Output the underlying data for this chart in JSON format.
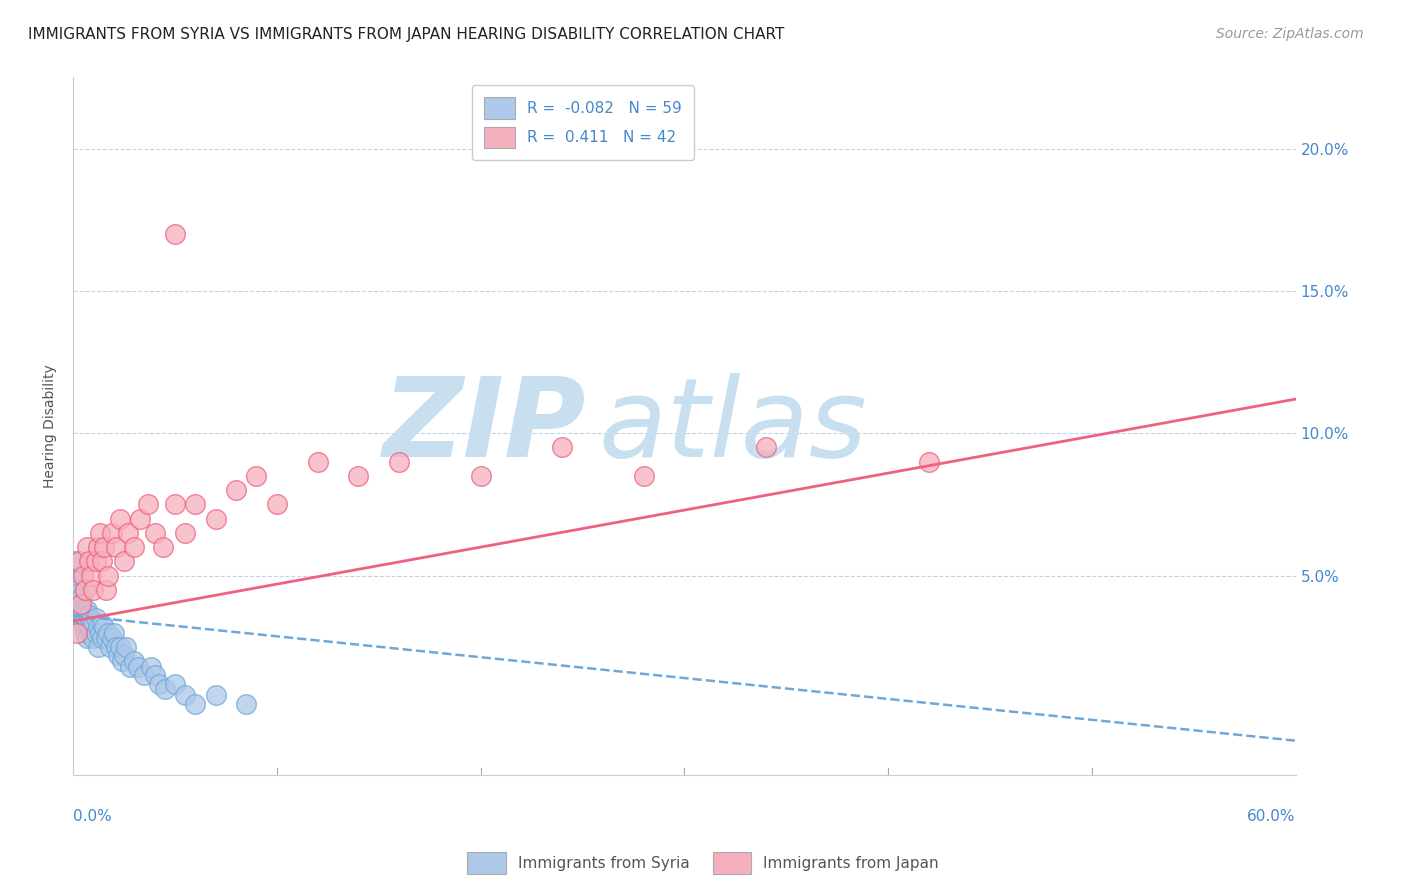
{
  "title": "IMMIGRANTS FROM SYRIA VS IMMIGRANTS FROM JAPAN HEARING DISABILITY CORRELATION CHART",
  "source": "Source: ZipAtlas.com",
  "ylabel": "Hearing Disability",
  "yticks": [
    0.0,
    0.05,
    0.1,
    0.15,
    0.2
  ],
  "ytick_labels": [
    "",
    "5.0%",
    "10.0%",
    "15.0%",
    "20.0%"
  ],
  "xlim": [
    0.0,
    0.6
  ],
  "ylim": [
    -0.02,
    0.225
  ],
  "syria_R": -0.082,
  "syria_N": 59,
  "japan_R": 0.411,
  "japan_N": 42,
  "syria_color": "#adc8e8",
  "japan_color": "#f5b0be",
  "syria_line_color": "#6fa8d8",
  "japan_line_color": "#f06080",
  "watermark_zip": "ZIP",
  "watermark_atlas": "atlas",
  "watermark_color_zip": "#c8dff0",
  "watermark_color_atlas": "#c8dff0",
  "legend_syria": "Immigrants from Syria",
  "legend_japan": "Immigrants from Japan",
  "syria_trend_x0": 0.0,
  "syria_trend_y0": 0.036,
  "syria_trend_x1": 0.6,
  "syria_trend_y1": -0.008,
  "japan_trend_x0": 0.0,
  "japan_trend_y0": 0.034,
  "japan_trend_x1": 0.6,
  "japan_trend_y1": 0.112,
  "syria_points_x": [
    0.001,
    0.001,
    0.001,
    0.002,
    0.002,
    0.002,
    0.003,
    0.003,
    0.003,
    0.003,
    0.004,
    0.004,
    0.004,
    0.005,
    0.005,
    0.005,
    0.006,
    0.006,
    0.007,
    0.007,
    0.007,
    0.008,
    0.008,
    0.009,
    0.009,
    0.01,
    0.01,
    0.011,
    0.011,
    0.012,
    0.012,
    0.013,
    0.014,
    0.014,
    0.015,
    0.016,
    0.017,
    0.018,
    0.019,
    0.02,
    0.021,
    0.022,
    0.023,
    0.024,
    0.025,
    0.026,
    0.028,
    0.03,
    0.032,
    0.035,
    0.038,
    0.04,
    0.042,
    0.045,
    0.05,
    0.055,
    0.06,
    0.07,
    0.085
  ],
  "syria_points_y": [
    0.05,
    0.055,
    0.048,
    0.042,
    0.045,
    0.038,
    0.04,
    0.044,
    0.036,
    0.038,
    0.035,
    0.037,
    0.042,
    0.036,
    0.038,
    0.033,
    0.035,
    0.03,
    0.034,
    0.038,
    0.028,
    0.036,
    0.032,
    0.03,
    0.034,
    0.033,
    0.028,
    0.035,
    0.03,
    0.032,
    0.025,
    0.03,
    0.028,
    0.033,
    0.032,
    0.028,
    0.03,
    0.025,
    0.028,
    0.03,
    0.025,
    0.022,
    0.025,
    0.02,
    0.022,
    0.025,
    0.018,
    0.02,
    0.018,
    0.015,
    0.018,
    0.015,
    0.012,
    0.01,
    0.012,
    0.008,
    0.005,
    0.008,
    0.005
  ],
  "japan_points_x": [
    0.002,
    0.003,
    0.004,
    0.005,
    0.006,
    0.007,
    0.008,
    0.009,
    0.01,
    0.011,
    0.012,
    0.013,
    0.014,
    0.015,
    0.016,
    0.017,
    0.019,
    0.021,
    0.023,
    0.025,
    0.027,
    0.03,
    0.033,
    0.037,
    0.04,
    0.044,
    0.05,
    0.055,
    0.06,
    0.07,
    0.08,
    0.09,
    0.1,
    0.12,
    0.14,
    0.16,
    0.2,
    0.24,
    0.28,
    0.34,
    0.42,
    0.05
  ],
  "japan_points_y": [
    0.03,
    0.055,
    0.04,
    0.05,
    0.045,
    0.06,
    0.055,
    0.05,
    0.045,
    0.055,
    0.06,
    0.065,
    0.055,
    0.06,
    0.045,
    0.05,
    0.065,
    0.06,
    0.07,
    0.055,
    0.065,
    0.06,
    0.07,
    0.075,
    0.065,
    0.06,
    0.075,
    0.065,
    0.075,
    0.07,
    0.08,
    0.085,
    0.075,
    0.09,
    0.085,
    0.09,
    0.085,
    0.095,
    0.085,
    0.095,
    0.09,
    0.17
  ],
  "title_fontsize": 11,
  "axis_label_fontsize": 10,
  "tick_fontsize": 11,
  "legend_fontsize": 11,
  "source_fontsize": 10
}
